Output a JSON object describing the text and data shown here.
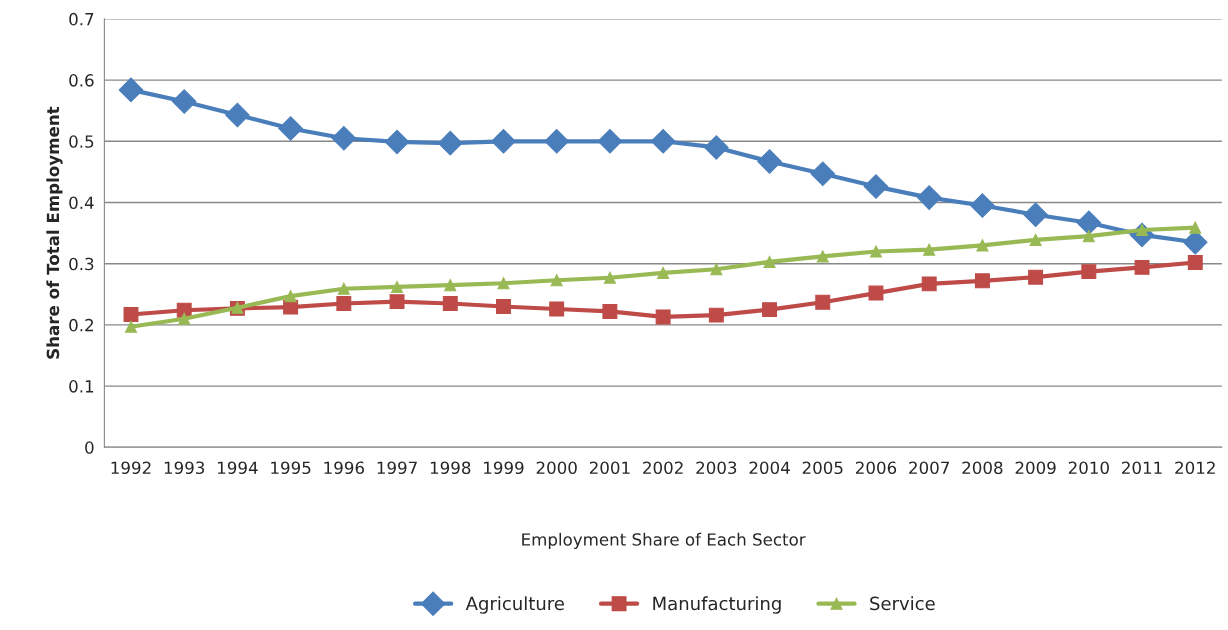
{
  "chart_data": {
    "type": "line",
    "xlabel": "Employment Share of Each Sector",
    "ylabel": "Share of Total Employment",
    "categories": [
      "1992",
      "1993",
      "1994",
      "1995",
      "1996",
      "1997",
      "1998",
      "1999",
      "2000",
      "2001",
      "2002",
      "2003",
      "2004",
      "2005",
      "2006",
      "2007",
      "2008",
      "2009",
      "2010",
      "2011",
      "2012"
    ],
    "series": [
      {
        "name": "Agriculture",
        "color": "#4a7ebb",
        "marker": "diamond",
        "values": [
          0.584,
          0.565,
          0.543,
          0.521,
          0.505,
          0.499,
          0.497,
          0.5,
          0.5,
          0.5,
          0.5,
          0.49,
          0.467,
          0.447,
          0.426,
          0.408,
          0.395,
          0.38,
          0.367,
          0.347,
          0.335
        ]
      },
      {
        "name": "Manufacturing",
        "color": "#be4b48",
        "marker": "square",
        "values": [
          0.217,
          0.224,
          0.227,
          0.229,
          0.235,
          0.238,
          0.235,
          0.23,
          0.226,
          0.222,
          0.213,
          0.216,
          0.225,
          0.237,
          0.252,
          0.267,
          0.272,
          0.278,
          0.287,
          0.294,
          0.302
        ]
      },
      {
        "name": "Service",
        "color": "#98b954",
        "marker": "triangle",
        "values": [
          0.197,
          0.21,
          0.228,
          0.247,
          0.259,
          0.262,
          0.265,
          0.268,
          0.273,
          0.277,
          0.285,
          0.291,
          0.303,
          0.312,
          0.32,
          0.323,
          0.33,
          0.339,
          0.345,
          0.355,
          0.359
        ]
      }
    ],
    "ylim": [
      0,
      0.7
    ],
    "yticks": [
      0,
      0.1,
      0.2,
      0.3,
      0.4,
      0.5,
      0.6,
      0.7
    ],
    "grid": "y",
    "legend": "bottom",
    "line_style": "solid"
  }
}
